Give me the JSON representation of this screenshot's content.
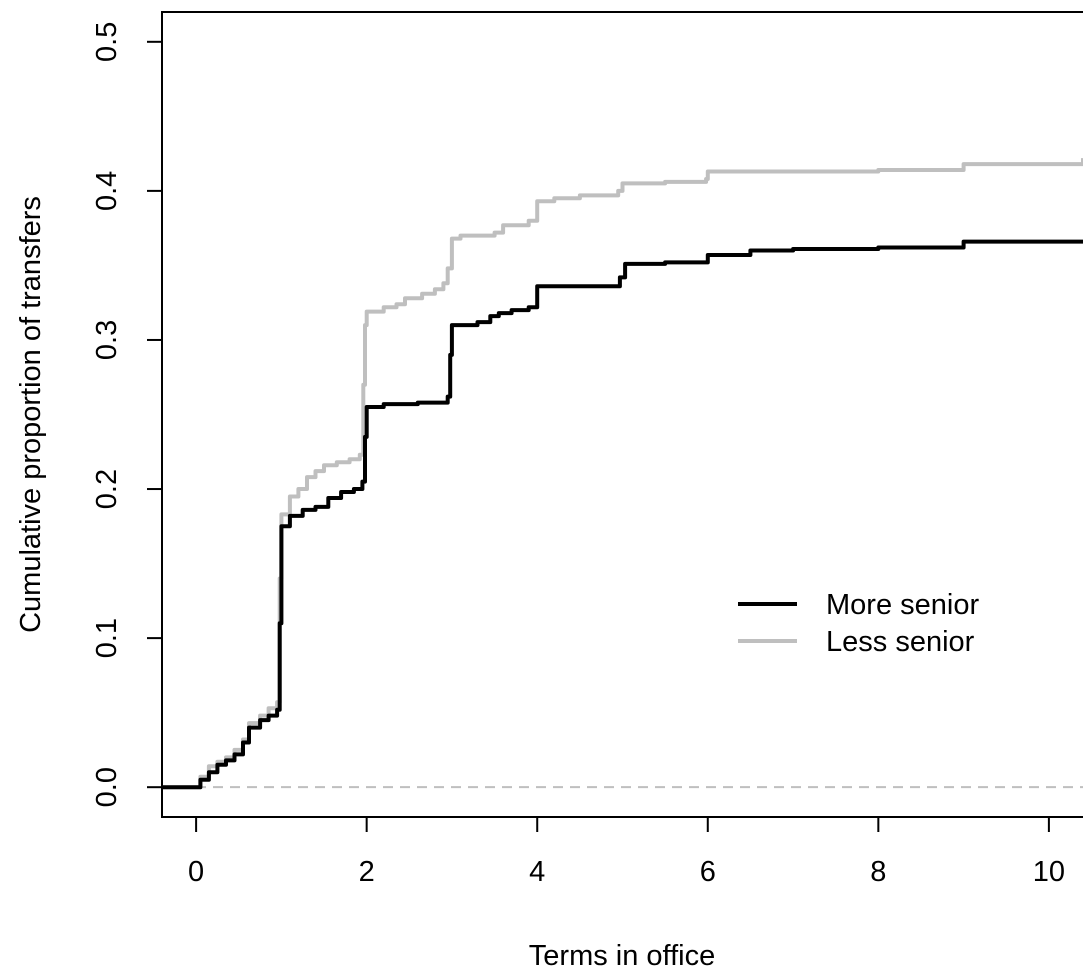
{
  "chart_data": {
    "type": "line",
    "step": true,
    "xlabel": "Terms in office",
    "ylabel": "Cumulative proportion of transfers",
    "xlim": [
      -0.4,
      10.4
    ],
    "ylim": [
      -0.02,
      0.52
    ],
    "xticks": [
      0,
      2,
      4,
      6,
      8,
      10
    ],
    "xtick_labels": [
      "0",
      "2",
      "4",
      "6",
      "8",
      "10"
    ],
    "yticks": [
      0.0,
      0.1,
      0.2,
      0.3,
      0.4,
      0.5
    ],
    "ytick_labels": [
      "0.0",
      "0.1",
      "0.2",
      "0.3",
      "0.4",
      "0.5"
    ],
    "reference_line": {
      "y": 0.0,
      "style": "dashed",
      "color": "#bfbfbf"
    },
    "legend_position": "right",
    "series": [
      {
        "name": "More senior",
        "color": "#000000",
        "points": [
          [
            -0.4,
            0
          ],
          [
            0,
            0
          ],
          [
            0.05,
            0.005
          ],
          [
            0.15,
            0.01
          ],
          [
            0.25,
            0.015
          ],
          [
            0.35,
            0.018
          ],
          [
            0.45,
            0.022
          ],
          [
            0.55,
            0.03
          ],
          [
            0.62,
            0.04
          ],
          [
            0.75,
            0.045
          ],
          [
            0.85,
            0.048
          ],
          [
            0.95,
            0.052
          ],
          [
            0.98,
            0.11
          ],
          [
            1.0,
            0.175
          ],
          [
            1.1,
            0.182
          ],
          [
            1.25,
            0.186
          ],
          [
            1.4,
            0.188
          ],
          [
            1.55,
            0.194
          ],
          [
            1.7,
            0.198
          ],
          [
            1.85,
            0.2
          ],
          [
            1.95,
            0.205
          ],
          [
            1.98,
            0.235
          ],
          [
            2.0,
            0.255
          ],
          [
            2.2,
            0.257
          ],
          [
            2.4,
            0.257
          ],
          [
            2.6,
            0.258
          ],
          [
            2.8,
            0.258
          ],
          [
            2.95,
            0.262
          ],
          [
            2.98,
            0.29
          ],
          [
            3.0,
            0.31
          ],
          [
            3.3,
            0.312
          ],
          [
            3.45,
            0.316
          ],
          [
            3.55,
            0.318
          ],
          [
            3.7,
            0.32
          ],
          [
            3.9,
            0.322
          ],
          [
            4.0,
            0.336
          ],
          [
            4.5,
            0.336
          ],
          [
            4.97,
            0.342
          ],
          [
            5.03,
            0.351
          ],
          [
            5.5,
            0.352
          ],
          [
            6.0,
            0.357
          ],
          [
            6.5,
            0.36
          ],
          [
            7.0,
            0.361
          ],
          [
            8.0,
            0.362
          ],
          [
            9.0,
            0.366
          ],
          [
            10.4,
            0.366
          ]
        ]
      },
      {
        "name": "Less senior",
        "color": "#bfbfbf",
        "points": [
          [
            -0.4,
            0
          ],
          [
            0,
            0
          ],
          [
            0.05,
            0.007
          ],
          [
            0.15,
            0.014
          ],
          [
            0.25,
            0.017
          ],
          [
            0.35,
            0.02
          ],
          [
            0.45,
            0.025
          ],
          [
            0.55,
            0.032
          ],
          [
            0.62,
            0.043
          ],
          [
            0.75,
            0.048
          ],
          [
            0.85,
            0.053
          ],
          [
            0.95,
            0.057
          ],
          [
            0.98,
            0.14
          ],
          [
            1.0,
            0.183
          ],
          [
            1.1,
            0.195
          ],
          [
            1.2,
            0.2
          ],
          [
            1.3,
            0.208
          ],
          [
            1.4,
            0.212
          ],
          [
            1.5,
            0.216
          ],
          [
            1.65,
            0.218
          ],
          [
            1.8,
            0.22
          ],
          [
            1.92,
            0.223
          ],
          [
            1.96,
            0.27
          ],
          [
            1.98,
            0.31
          ],
          [
            2.0,
            0.319
          ],
          [
            2.2,
            0.322
          ],
          [
            2.35,
            0.324
          ],
          [
            2.45,
            0.328
          ],
          [
            2.65,
            0.331
          ],
          [
            2.8,
            0.334
          ],
          [
            2.9,
            0.338
          ],
          [
            2.95,
            0.348
          ],
          [
            3.0,
            0.368
          ],
          [
            3.1,
            0.37
          ],
          [
            3.5,
            0.372
          ],
          [
            3.6,
            0.377
          ],
          [
            3.9,
            0.38
          ],
          [
            4.0,
            0.393
          ],
          [
            4.2,
            0.395
          ],
          [
            4.5,
            0.397
          ],
          [
            4.95,
            0.4
          ],
          [
            5.0,
            0.405
          ],
          [
            5.5,
            0.406
          ],
          [
            5.98,
            0.408
          ],
          [
            6.0,
            0.413
          ],
          [
            7.0,
            0.413
          ],
          [
            8.0,
            0.414
          ],
          [
            9.0,
            0.418
          ],
          [
            10.4,
            0.422
          ]
        ]
      }
    ]
  }
}
